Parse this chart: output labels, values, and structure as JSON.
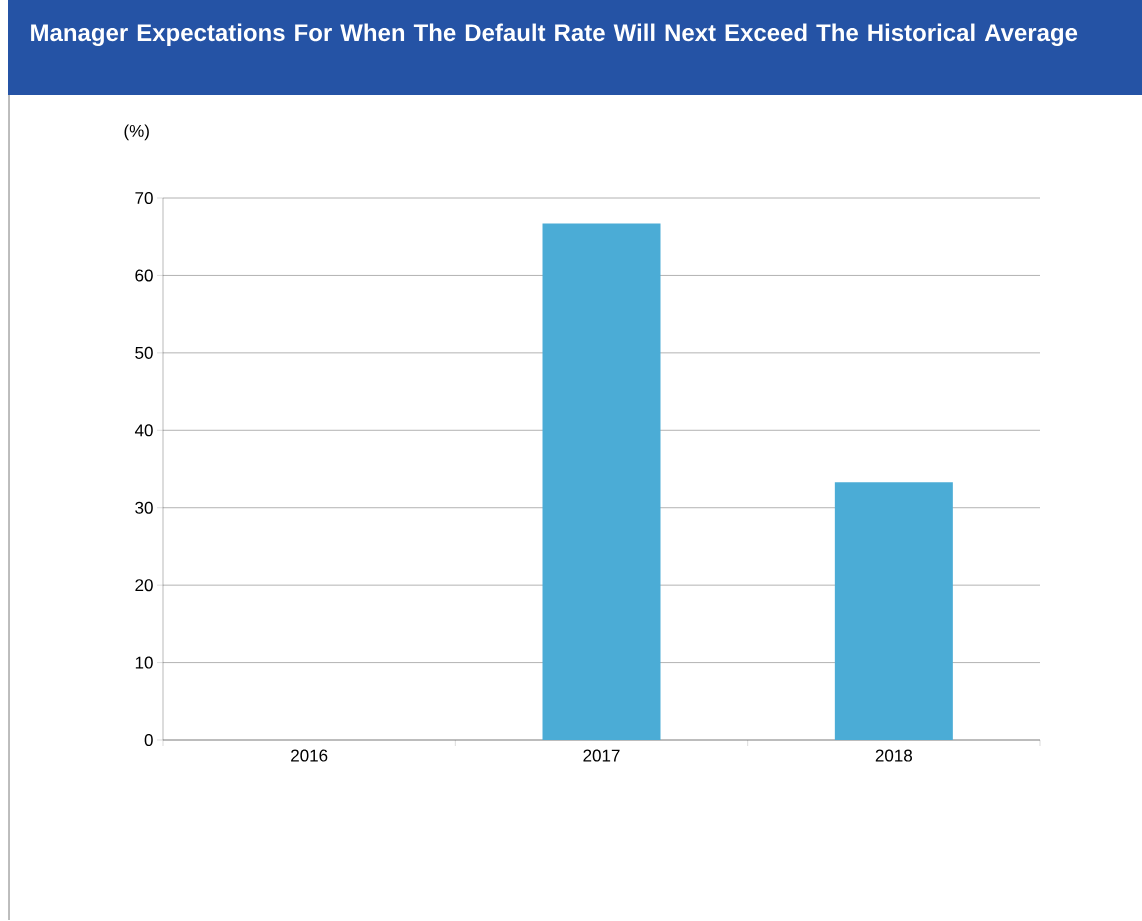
{
  "chart_data": {
    "type": "bar",
    "title": "Manager Expectations For When The Default Rate Will Next Exceed The Historical Average",
    "ylabel": "(%)",
    "categories": [
      "2016",
      "2017",
      "2018"
    ],
    "values": [
      0,
      66.7,
      33.3
    ],
    "color": "#4bacd6",
    "ylim": [
      0,
      70
    ],
    "yticks": [
      0,
      10,
      20,
      30,
      40,
      50,
      60,
      70
    ],
    "grid": "y"
  }
}
